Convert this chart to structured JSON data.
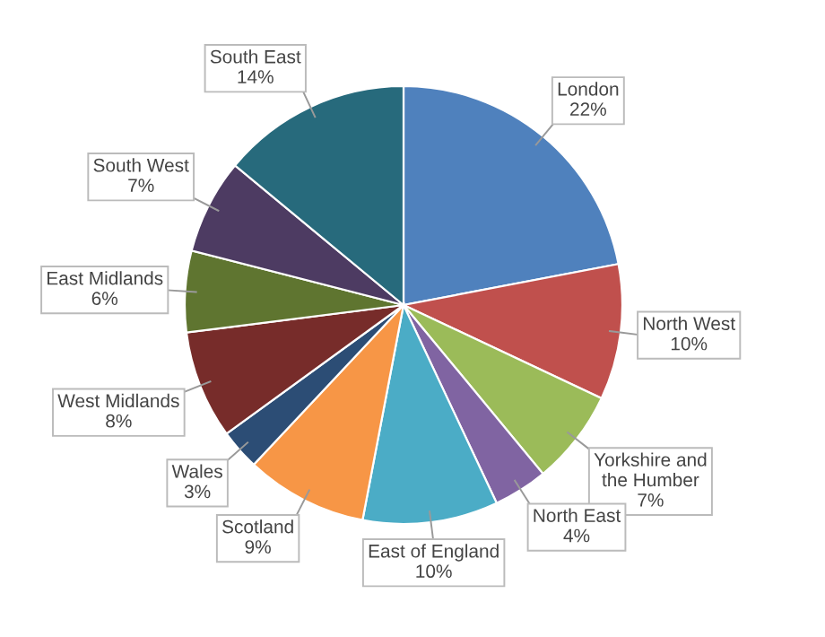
{
  "chart_data": {
    "type": "pie",
    "categories": [
      "London",
      "North West",
      "Yorkshire and the Humber",
      "North East",
      "East of England",
      "Scotland",
      "Wales",
      "West Midlands",
      "East Midlands",
      "South West",
      "South East"
    ],
    "values": [
      22,
      10,
      7,
      4,
      10,
      9,
      3,
      8,
      6,
      7,
      14
    ],
    "value_labels": [
      "22%",
      "10%",
      "7%",
      "4%",
      "10%",
      "9%",
      "3%",
      "8%",
      "6%",
      "7%",
      "14%"
    ],
    "colors": [
      "#4f81bd",
      "#c0504d",
      "#9bbb59",
      "#8064a2",
      "#4bacc6",
      "#f79646",
      "#2c4d75",
      "#772c2a",
      "#5f7530",
      "#4d3b62",
      "#276a7c"
    ]
  }
}
